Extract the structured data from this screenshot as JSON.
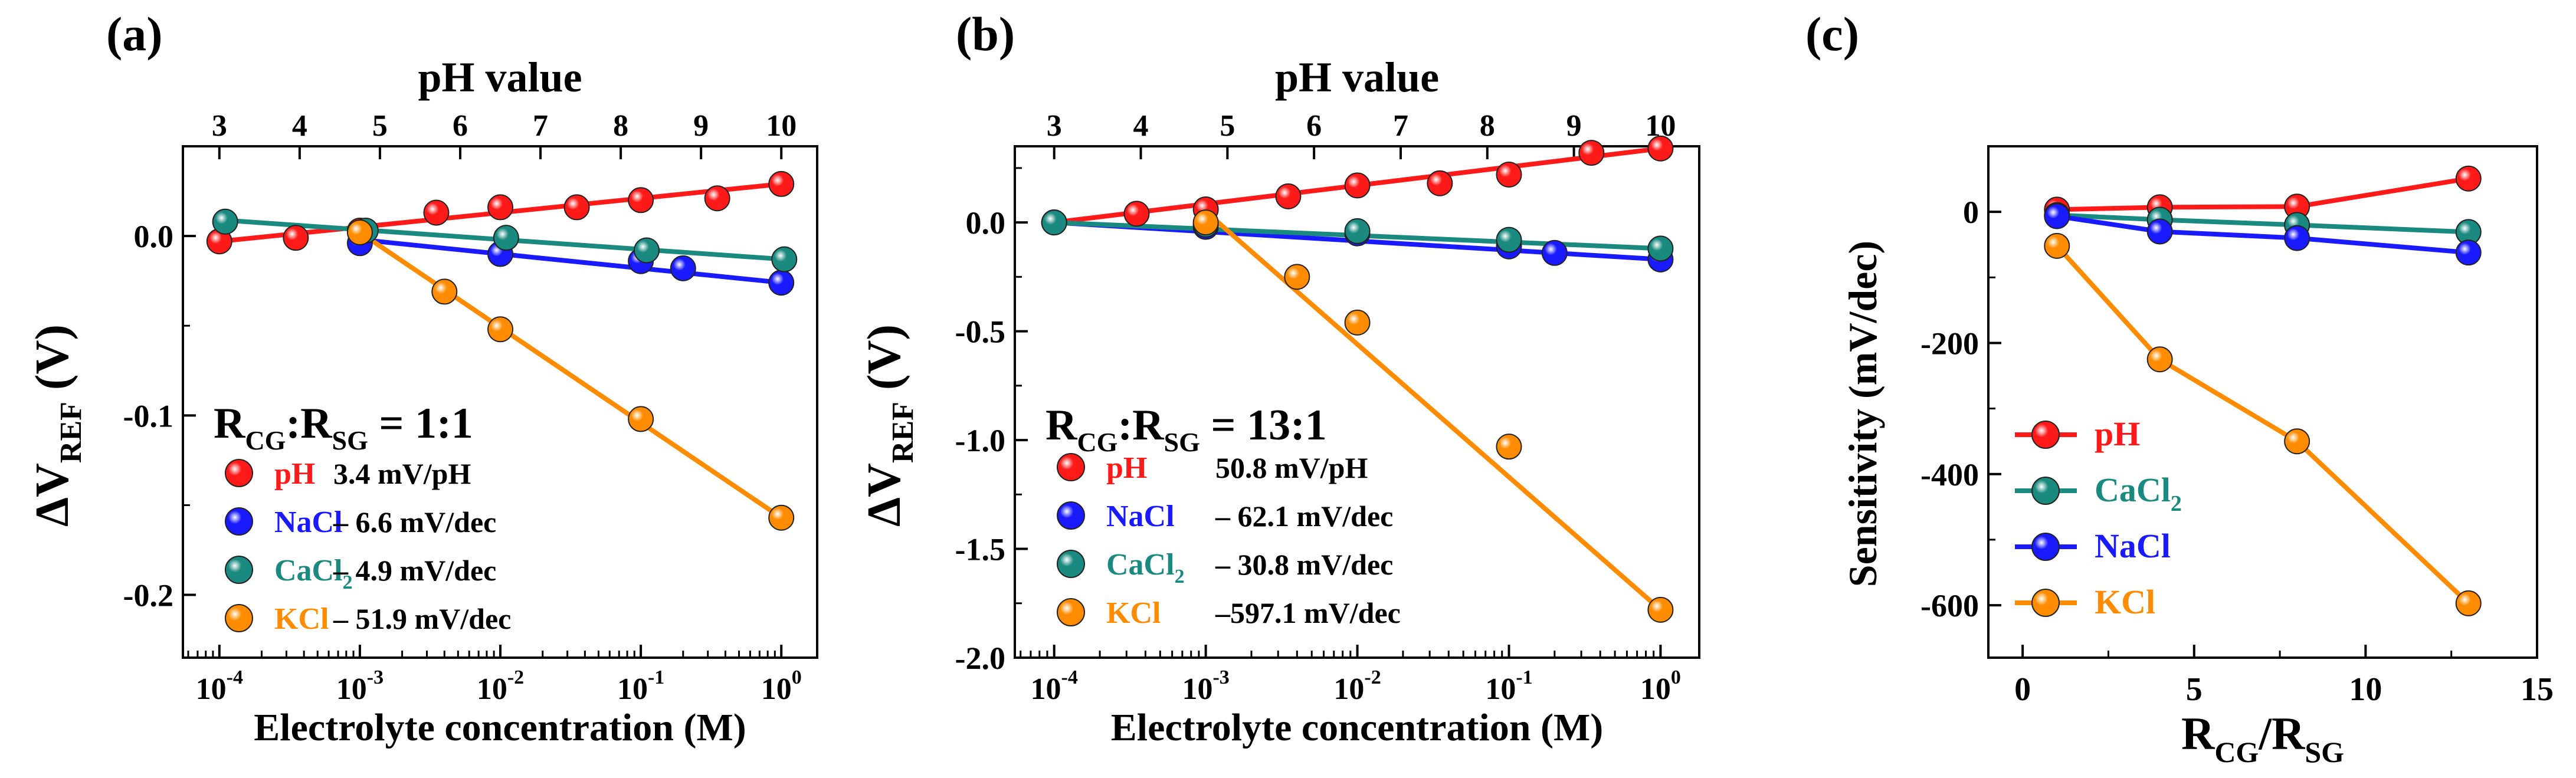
{
  "colors": {
    "pH": "#ff1a1a",
    "NaCl": "#1a1aff",
    "CaCl2": "#1a8a80",
    "KCl": "#ff8c00",
    "axis": "#000000"
  },
  "chart_data": [
    {
      "type": "scatter",
      "panel_label": "(a)",
      "top_axis_title": "pH value",
      "xlabel": "Electrolyte concentration (M)",
      "ylabel_main": "ΔV",
      "ylabel_sub": "REF",
      "ylabel_unit": "(V)",
      "x_scale": "log",
      "xlim": [
        5.5e-05,
        1.8
      ],
      "ylim": [
        -0.235,
        0.05
      ],
      "x_ticks": [
        {
          "v": 0.0001,
          "base": "10",
          "exp": "-4"
        },
        {
          "v": 0.001,
          "base": "10",
          "exp": "-3"
        },
        {
          "v": 0.01,
          "base": "10",
          "exp": "-2"
        },
        {
          "v": 0.1,
          "base": "10",
          "exp": "-1"
        },
        {
          "v": 1,
          "base": "10",
          "exp": "0"
        }
      ],
      "y_ticks": [
        {
          "v": 0.0,
          "label": "0.0"
        },
        {
          "v": -0.1,
          "label": "-0.1"
        },
        {
          "v": -0.2,
          "label": "-0.2"
        }
      ],
      "y_minor": [
        0.05,
        -0.05,
        -0.15
      ],
      "top_ticks": [
        {
          "pH": 3,
          "label": "3"
        },
        {
          "pH": 4,
          "label": "4"
        },
        {
          "pH": 5,
          "label": "5"
        },
        {
          "pH": 6,
          "label": "6"
        },
        {
          "pH": 7,
          "label": "7"
        },
        {
          "pH": 8,
          "label": "8"
        },
        {
          "pH": 9,
          "label": "9"
        },
        {
          "pH": 10,
          "label": "10"
        }
      ],
      "ratio_label": {
        "R1": "R",
        "sub1": "CG",
        "colon": ":R",
        "sub2": "SG",
        "value": " = 1:1"
      },
      "legend": [
        {
          "key": "pH",
          "name": "pH",
          "sub": "",
          "sensitivity": "3.4 mV/pH"
        },
        {
          "key": "NaCl",
          "name": "NaCl",
          "sub": "",
          "sensitivity": "– 6.6 mV/dec"
        },
        {
          "key": "CaCl2",
          "name": "CaCl",
          "sub": "2",
          "sensitivity": "– 4.9 mV/dec"
        },
        {
          "key": "KCl",
          "name": "KCl",
          "sub": "",
          "sensitivity": "– 51.9 mV/dec"
        }
      ],
      "series": [
        {
          "key": "pH",
          "name": "pH",
          "x": [
            0.0001,
            0.00035,
            0.001,
            0.0035,
            0.01,
            0.035,
            0.1,
            0.35,
            1
          ],
          "y": [
            -0.003,
            -0.001,
            0.003,
            0.013,
            0.016,
            0.016,
            0.02,
            0.021,
            0.029
          ],
          "fit": [
            [
              0.0001,
              -0.003
            ],
            [
              1,
              0.029
            ]
          ]
        },
        {
          "key": "NaCl",
          "name": "NaCl",
          "x": [
            0.001,
            0.01,
            0.1,
            0.2,
            1
          ],
          "y": [
            -0.004,
            -0.01,
            -0.014,
            -0.018,
            -0.026
          ],
          "fit": [
            [
              0.001,
              -0.002
            ],
            [
              1,
              -0.026
            ]
          ]
        },
        {
          "key": "CaCl2",
          "name": "CaCl2",
          "x": [
            0.00011,
            0.0011,
            0.011,
            0.11,
            1.05
          ],
          "y": [
            0.008,
            0.003,
            -0.001,
            -0.008,
            -0.013
          ],
          "fit": [
            [
              0.0001,
              0.009
            ],
            [
              1.05,
              -0.013
            ]
          ]
        },
        {
          "key": "KCl",
          "name": "KCl",
          "x": [
            0.001,
            0.004,
            0.01,
            0.1,
            1
          ],
          "y": [
            0.002,
            -0.031,
            -0.052,
            -0.102,
            -0.157
          ],
          "fit": [
            [
              0.001,
              0.002
            ],
            [
              1,
              -0.157
            ]
          ]
        }
      ]
    },
    {
      "type": "scatter",
      "panel_label": "(b)",
      "top_axis_title": "pH value",
      "xlabel": "Electrolyte concentration (M)",
      "ylabel_main": "ΔV",
      "ylabel_sub": "REF",
      "ylabel_unit": "(V)",
      "x_scale": "log",
      "xlim": [
        5.5e-05,
        1.8
      ],
      "ylim": [
        -2.0,
        0.35
      ],
      "x_ticks": [
        {
          "v": 0.0001,
          "base": "10",
          "exp": "-4"
        },
        {
          "v": 0.001,
          "base": "10",
          "exp": "-3"
        },
        {
          "v": 0.01,
          "base": "10",
          "exp": "-2"
        },
        {
          "v": 0.1,
          "base": "10",
          "exp": "-1"
        },
        {
          "v": 1,
          "base": "10",
          "exp": "0"
        }
      ],
      "y_ticks": [
        {
          "v": 0.0,
          "label": "0.0"
        },
        {
          "v": -0.5,
          "label": "-0.5"
        },
        {
          "v": -1.0,
          "label": "-1.0"
        },
        {
          "v": -1.5,
          "label": "-1.5"
        },
        {
          "v": -2.0,
          "label": "-2.0"
        }
      ],
      "y_minor": [
        0.25,
        -0.25,
        -0.75,
        -1.25,
        -1.75
      ],
      "top_ticks": [
        {
          "pH": 3,
          "label": "3"
        },
        {
          "pH": 4,
          "label": "4"
        },
        {
          "pH": 5,
          "label": "5"
        },
        {
          "pH": 6,
          "label": "6"
        },
        {
          "pH": 7,
          "label": "7"
        },
        {
          "pH": 8,
          "label": "8"
        },
        {
          "pH": 9,
          "label": "9"
        },
        {
          "pH": 10,
          "label": "10"
        }
      ],
      "ratio_label": {
        "R1": "R",
        "sub1": "CG",
        "colon": ":R",
        "sub2": "SG",
        "value": " = 13:1"
      },
      "legend": [
        {
          "key": "pH",
          "name": "pH",
          "sub": "",
          "sensitivity": "50.8 mV/pH"
        },
        {
          "key": "NaCl",
          "name": "NaCl",
          "sub": "",
          "sensitivity": "– 62.1 mV/dec"
        },
        {
          "key": "CaCl2",
          "name": "CaCl",
          "sub": "2",
          "sensitivity": "– 30.8 mV/dec"
        },
        {
          "key": "KCl",
          "name": "KCl",
          "sub": "",
          "sensitivity": "–597.1 mV/dec"
        }
      ],
      "series": [
        {
          "key": "pH",
          "name": "pH",
          "x": [
            0.0001,
            0.00035,
            0.001,
            0.0035,
            0.01,
            0.035,
            0.1,
            0.35,
            1
          ],
          "y": [
            0.0,
            0.04,
            0.06,
            0.12,
            0.17,
            0.18,
            0.22,
            0.32,
            0.34
          ],
          "fit": [
            [
              0.0001,
              0.0
            ],
            [
              1,
              0.34
            ]
          ]
        },
        {
          "key": "NaCl",
          "name": "NaCl",
          "x": [
            0.0001,
            0.001,
            0.01,
            0.1,
            0.2,
            1
          ],
          "y": [
            0.0,
            -0.02,
            -0.05,
            -0.11,
            -0.14,
            -0.17
          ],
          "fit": [
            [
              0.0001,
              0.0
            ],
            [
              1,
              -0.17
            ]
          ]
        },
        {
          "key": "CaCl2",
          "name": "CaCl2",
          "x": [
            0.0001,
            0.001,
            0.01,
            0.1,
            1
          ],
          "y": [
            0.0,
            -0.01,
            -0.04,
            -0.08,
            -0.12
          ],
          "fit": [
            [
              0.0001,
              0.0
            ],
            [
              1,
              -0.12
            ]
          ]
        },
        {
          "key": "KCl",
          "name": "KCl",
          "x": [
            0.001,
            0.004,
            0.01,
            0.1,
            1
          ],
          "y": [
            0.0,
            -0.25,
            -0.46,
            -1.03,
            -1.78
          ],
          "fit": [
            [
              0.001,
              0.05
            ],
            [
              1,
              -1.78
            ]
          ]
        }
      ]
    },
    {
      "type": "line",
      "panel_label": "(c)",
      "xlabel_main": "R",
      "xlabel_sub1": "CG",
      "xlabel_mid": "/R",
      "xlabel_sub2": "SG",
      "ylabel": "Sensitivity (mV/dec)",
      "x_scale": "linear",
      "xlim": [
        -1,
        15
      ],
      "ylim": [
        -680,
        100
      ],
      "x_ticks": [
        {
          "v": 0,
          "label": "0"
        },
        {
          "v": 5,
          "label": "5"
        },
        {
          "v": 10,
          "label": "10"
        },
        {
          "v": 15,
          "label": "15"
        }
      ],
      "x_minor": [
        2.5,
        7.5,
        12.5
      ],
      "y_ticks": [
        {
          "v": 0,
          "label": "0"
        },
        {
          "v": -200,
          "label": "-200"
        },
        {
          "v": -400,
          "label": "-400"
        },
        {
          "v": -600,
          "label": "-600"
        }
      ],
      "y_minor": [
        -100,
        -300,
        -500
      ],
      "legend": [
        {
          "key": "pH",
          "name": "pH",
          "sub": ""
        },
        {
          "key": "CaCl2",
          "name": "CaCl",
          "sub": "2"
        },
        {
          "key": "NaCl",
          "name": "NaCl",
          "sub": ""
        },
        {
          "key": "KCl",
          "name": "KCl",
          "sub": ""
        }
      ],
      "series": [
        {
          "key": "pH",
          "name": "pH",
          "x": [
            1,
            4,
            8,
            13
          ],
          "y": [
            3.4,
            7,
            8,
            50.8
          ]
        },
        {
          "key": "CaCl2",
          "name": "CaCl2",
          "x": [
            1,
            4,
            8,
            13
          ],
          "y": [
            -4.9,
            -12,
            -20,
            -30.8
          ]
        },
        {
          "key": "NaCl",
          "name": "NaCl",
          "x": [
            1,
            4,
            8,
            13
          ],
          "y": [
            -6.6,
            -30,
            -40,
            -62.1
          ]
        },
        {
          "key": "KCl",
          "name": "KCl",
          "x": [
            1,
            4,
            8,
            13
          ],
          "y": [
            -51.9,
            -225,
            -350,
            -597.1
          ]
        }
      ]
    }
  ]
}
